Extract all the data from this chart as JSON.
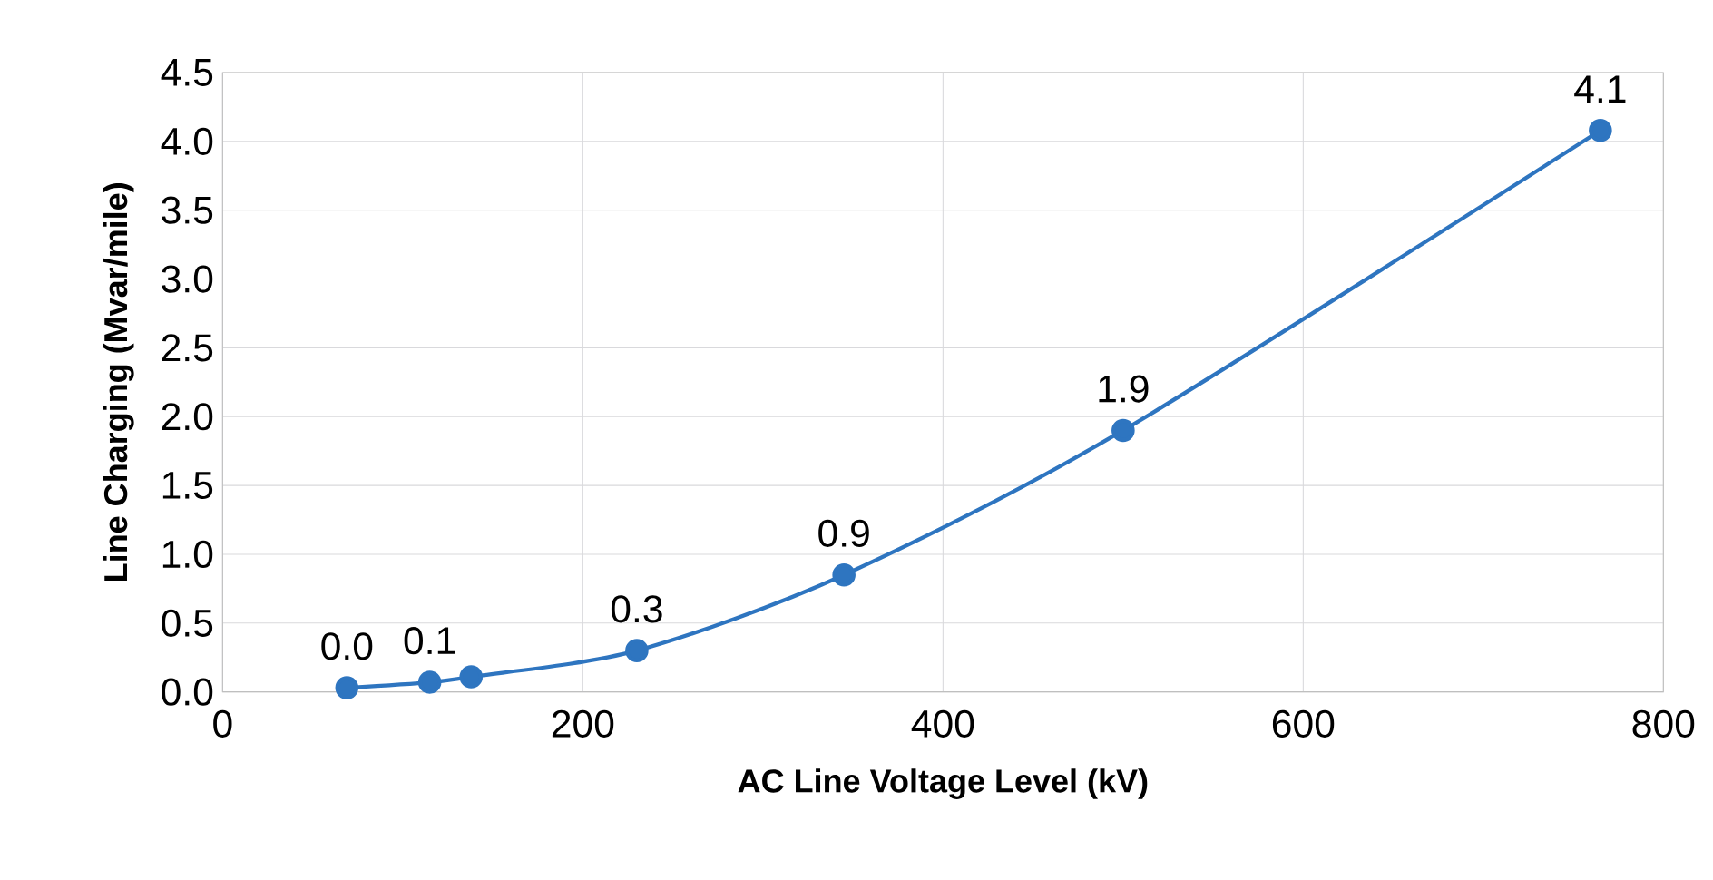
{
  "chart_data": {
    "type": "line",
    "xlabel": "AC Line Voltage Level (kV)",
    "ylabel": "Line Charging (Mvar/mile)",
    "x": [
      69,
      115,
      138,
      230,
      345,
      500,
      765
    ],
    "series": [
      {
        "color": "#2e75c0",
        "values": [
          0.03,
          0.07,
          0.11,
          0.3,
          0.85,
          1.9,
          4.08
        ],
        "value_labels": [
          "0.0",
          "0.1",
          null,
          "0.3",
          "0.9",
          "1.9",
          "4.1"
        ]
      }
    ],
    "xlim": [
      0,
      800
    ],
    "xticks": [
      0,
      200,
      400,
      600,
      800
    ],
    "ylim": [
      0,
      4.5
    ],
    "yticks": [
      {
        "value": 0,
        "label": "0.0"
      },
      {
        "value": 0.5,
        "label": "0.5"
      },
      {
        "value": 1,
        "label": "1.0"
      },
      {
        "value": 1.5,
        "label": "1.5"
      },
      {
        "value": 2,
        "label": "2.0"
      },
      {
        "value": 2.5,
        "label": "2.5"
      },
      {
        "value": 3,
        "label": "3.0"
      },
      {
        "value": 3.5,
        "label": "3.5"
      },
      {
        "value": 4,
        "label": "4.0"
      },
      {
        "value": 4.5,
        "label": "4.5"
      }
    ],
    "grid": true,
    "marker": "circle",
    "line_style": "solid"
  }
}
